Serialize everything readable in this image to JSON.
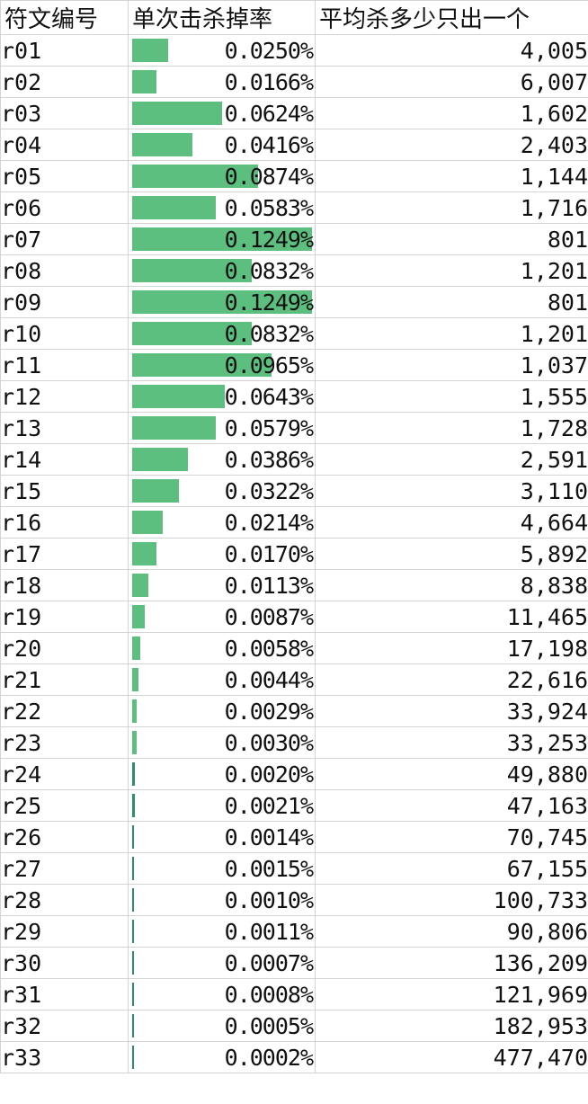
{
  "headers": [
    "符文编号",
    "单次击杀掉率",
    "平均杀多少只出一个"
  ],
  "bar_color": "#5cbf7f",
  "bar_max_rate": 0.1249,
  "rows": [
    {
      "id": "r01",
      "rate": "0.0250%",
      "rate_value": 0.025,
      "avg": "4,005"
    },
    {
      "id": "r02",
      "rate": "0.0166%",
      "rate_value": 0.0166,
      "avg": "6,007"
    },
    {
      "id": "r03",
      "rate": "0.0624%",
      "rate_value": 0.0624,
      "avg": "1,602"
    },
    {
      "id": "r04",
      "rate": "0.0416%",
      "rate_value": 0.0416,
      "avg": "2,403"
    },
    {
      "id": "r05",
      "rate": "0.0874%",
      "rate_value": 0.0874,
      "avg": "1,144"
    },
    {
      "id": "r06",
      "rate": "0.0583%",
      "rate_value": 0.0583,
      "avg": "1,716"
    },
    {
      "id": "r07",
      "rate": "0.1249%",
      "rate_value": 0.1249,
      "avg": "801"
    },
    {
      "id": "r08",
      "rate": "0.0832%",
      "rate_value": 0.0832,
      "avg": "1,201"
    },
    {
      "id": "r09",
      "rate": "0.1249%",
      "rate_value": 0.1249,
      "avg": "801"
    },
    {
      "id": "r10",
      "rate": "0.0832%",
      "rate_value": 0.0832,
      "avg": "1,201"
    },
    {
      "id": "r11",
      "rate": "0.0965%",
      "rate_value": 0.0965,
      "avg": "1,037"
    },
    {
      "id": "r12",
      "rate": "0.0643%",
      "rate_value": 0.0643,
      "avg": "1,555"
    },
    {
      "id": "r13",
      "rate": "0.0579%",
      "rate_value": 0.0579,
      "avg": "1,728"
    },
    {
      "id": "r14",
      "rate": "0.0386%",
      "rate_value": 0.0386,
      "avg": "2,591"
    },
    {
      "id": "r15",
      "rate": "0.0322%",
      "rate_value": 0.0322,
      "avg": "3,110"
    },
    {
      "id": "r16",
      "rate": "0.0214%",
      "rate_value": 0.0214,
      "avg": "4,664"
    },
    {
      "id": "r17",
      "rate": "0.0170%",
      "rate_value": 0.017,
      "avg": "5,892"
    },
    {
      "id": "r18",
      "rate": "0.0113%",
      "rate_value": 0.0113,
      "avg": "8,838"
    },
    {
      "id": "r19",
      "rate": "0.0087%",
      "rate_value": 0.0087,
      "avg": "11,465"
    },
    {
      "id": "r20",
      "rate": "0.0058%",
      "rate_value": 0.0058,
      "avg": "17,198"
    },
    {
      "id": "r21",
      "rate": "0.0044%",
      "rate_value": 0.0044,
      "avg": "22,616"
    },
    {
      "id": "r22",
      "rate": "0.0029%",
      "rate_value": 0.0029,
      "avg": "33,924"
    },
    {
      "id": "r23",
      "rate": "0.0030%",
      "rate_value": 0.003,
      "avg": "33,253"
    },
    {
      "id": "r24",
      "rate": "0.0020%",
      "rate_value": 0.002,
      "avg": "49,880"
    },
    {
      "id": "r25",
      "rate": "0.0021%",
      "rate_value": 0.0021,
      "avg": "47,163"
    },
    {
      "id": "r26",
      "rate": "0.0014%",
      "rate_value": 0.0014,
      "avg": "70,745"
    },
    {
      "id": "r27",
      "rate": "0.0015%",
      "rate_value": 0.0015,
      "avg": "67,155"
    },
    {
      "id": "r28",
      "rate": "0.0010%",
      "rate_value": 0.001,
      "avg": "100,733"
    },
    {
      "id": "r29",
      "rate": "0.0011%",
      "rate_value": 0.0011,
      "avg": "90,806"
    },
    {
      "id": "r30",
      "rate": "0.0007%",
      "rate_value": 0.0007,
      "avg": "136,209"
    },
    {
      "id": "r31",
      "rate": "0.0008%",
      "rate_value": 0.0008,
      "avg": "121,969"
    },
    {
      "id": "r32",
      "rate": "0.0005%",
      "rate_value": 0.0005,
      "avg": "182,953"
    },
    {
      "id": "r33",
      "rate": "0.0002%",
      "rate_value": 0.0002,
      "avg": "477,470"
    }
  ]
}
